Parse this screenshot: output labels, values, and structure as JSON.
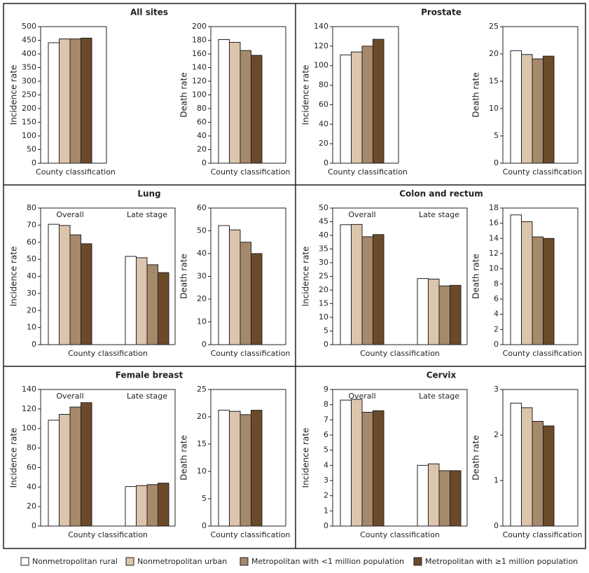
{
  "legend": [
    {
      "name": "Nonmetropolitan rural",
      "color": "#ffffff"
    },
    {
      "name": "Nonmetropolitan urban",
      "color": "#dcc5ad"
    },
    {
      "name": "Metropolitan with <1 million population",
      "color": "#a5896b"
    },
    {
      "name": "Metropolitan with ≥1 million population",
      "color": "#6b4a2a"
    }
  ],
  "chart_data": [
    {
      "type": "bar",
      "title": "All sites",
      "y_label": "Incidence rate",
      "x_label": "County classification",
      "ylim": [
        0,
        500
      ],
      "yticks": [
        0,
        50,
        100,
        150,
        200,
        250,
        300,
        350,
        400,
        450,
        500
      ],
      "series": [
        {
          "values": [
            441
          ]
        },
        {
          "values": [
            455
          ]
        },
        {
          "values": [
            455
          ]
        },
        {
          "values": [
            458
          ]
        }
      ]
    },
    {
      "type": "bar",
      "y_label": "Death rate",
      "x_label": "County classification",
      "ylim": [
        0,
        200
      ],
      "yticks": [
        0,
        20,
        40,
        60,
        80,
        100,
        120,
        140,
        160,
        180,
        200
      ],
      "series": [
        {
          "values": [
            181
          ]
        },
        {
          "values": [
            177
          ]
        },
        {
          "values": [
            165
          ]
        },
        {
          "values": [
            158
          ]
        }
      ]
    },
    {
      "type": "bar",
      "title": "Prostate",
      "y_label": "Incidence rate",
      "x_label": "County classification",
      "ylim": [
        0,
        140
      ],
      "yticks": [
        0,
        20,
        40,
        60,
        80,
        100,
        120,
        140
      ],
      "series": [
        {
          "values": [
            111
          ]
        },
        {
          "values": [
            114
          ]
        },
        {
          "values": [
            120
          ]
        },
        {
          "values": [
            127
          ]
        }
      ]
    },
    {
      "type": "bar",
      "y_label": "Death rate",
      "x_label": "County classification",
      "ylim": [
        0,
        25
      ],
      "yticks": [
        0,
        5,
        10,
        15,
        20,
        25
      ],
      "series": [
        {
          "values": [
            20.6
          ]
        },
        {
          "values": [
            19.9
          ]
        },
        {
          "values": [
            19.1
          ]
        },
        {
          "values": [
            19.6
          ]
        }
      ]
    },
    {
      "type": "bar",
      "title": "Lung",
      "y_label": "Incidence rate",
      "x_label": "County classification",
      "categories": [
        "Overall",
        "Late stage"
      ],
      "ylim": [
        0,
        80
      ],
      "yticks": [
        0,
        10,
        20,
        30,
        40,
        50,
        60,
        70,
        80
      ],
      "series": [
        {
          "values": [
            70.5,
            51.7
          ]
        },
        {
          "values": [
            69.8,
            50.9
          ]
        },
        {
          "values": [
            64.3,
            46.8
          ]
        },
        {
          "values": [
            59.1,
            42.2
          ]
        }
      ]
    },
    {
      "type": "bar",
      "y_label": "Death rate",
      "x_label": "County classification",
      "ylim": [
        0,
        60
      ],
      "yticks": [
        0,
        10,
        20,
        30,
        40,
        50,
        60
      ],
      "series": [
        {
          "values": [
            52.3
          ]
        },
        {
          "values": [
            50.4
          ]
        },
        {
          "values": [
            45
          ]
        },
        {
          "values": [
            40
          ]
        }
      ]
    },
    {
      "type": "bar",
      "title": "Colon and rectum",
      "y_label": "Incidence rate",
      "x_label": "County classification",
      "categories": [
        "Overall",
        "Late stage"
      ],
      "ylim": [
        0,
        50
      ],
      "yticks": [
        0,
        5,
        10,
        15,
        20,
        25,
        30,
        35,
        40,
        45,
        50
      ],
      "series": [
        {
          "values": [
            43.9,
            24.2
          ]
        },
        {
          "values": [
            44,
            24
          ]
        },
        {
          "values": [
            39.5,
            21.5
          ]
        },
        {
          "values": [
            40.3,
            21.7
          ]
        }
      ]
    },
    {
      "type": "bar",
      "y_label": "Death rate",
      "x_label": "County classification",
      "ylim": [
        0,
        18
      ],
      "yticks": [
        0,
        2,
        4,
        6,
        8,
        10,
        12,
        14,
        16,
        18
      ],
      "series": [
        {
          "values": [
            17.1
          ]
        },
        {
          "values": [
            16.2
          ]
        },
        {
          "values": [
            14.2
          ]
        },
        {
          "values": [
            14
          ]
        }
      ]
    },
    {
      "type": "bar",
      "title": "Female breast",
      "y_label": "Incidence rate",
      "x_label": "County classification",
      "categories": [
        "Overall",
        "Late stage"
      ],
      "ylim": [
        0,
        140
      ],
      "yticks": [
        0,
        20,
        40,
        60,
        80,
        100,
        120,
        140
      ],
      "series": [
        {
          "values": [
            108.5,
            40.5
          ]
        },
        {
          "values": [
            114.5,
            41.5
          ]
        },
        {
          "values": [
            122,
            42.5
          ]
        },
        {
          "values": [
            126.5,
            44
          ]
        }
      ]
    },
    {
      "type": "bar",
      "y_label": "Death rate",
      "x_label": "County classification",
      "ylim": [
        0,
        25
      ],
      "yticks": [
        0,
        5,
        10,
        15,
        20,
        25
      ],
      "series": [
        {
          "values": [
            21.2
          ]
        },
        {
          "values": [
            21
          ]
        },
        {
          "values": [
            20.4
          ]
        },
        {
          "values": [
            21.2
          ]
        }
      ]
    },
    {
      "type": "bar",
      "title": "Cervix",
      "y_label": "Incidence rate",
      "x_label": "County classification",
      "categories": [
        "Overall",
        "Late stage"
      ],
      "ylim": [
        0,
        9
      ],
      "yticks": [
        0,
        1,
        2,
        3,
        4,
        5,
        6,
        7,
        8,
        9
      ],
      "series": [
        {
          "values": [
            8.3,
            4
          ]
        },
        {
          "values": [
            8.35,
            4.1
          ]
        },
        {
          "values": [
            7.5,
            3.65
          ]
        },
        {
          "values": [
            7.6,
            3.65
          ]
        }
      ]
    },
    {
      "type": "bar",
      "y_label": "Death rate",
      "x_label": "County classification",
      "ylim": [
        0,
        3
      ],
      "yticks": [
        0,
        1,
        2,
        3
      ],
      "series": [
        {
          "values": [
            2.7
          ]
        },
        {
          "values": [
            2.6
          ]
        },
        {
          "values": [
            2.3
          ]
        },
        {
          "values": [
            2.2
          ]
        }
      ]
    }
  ]
}
